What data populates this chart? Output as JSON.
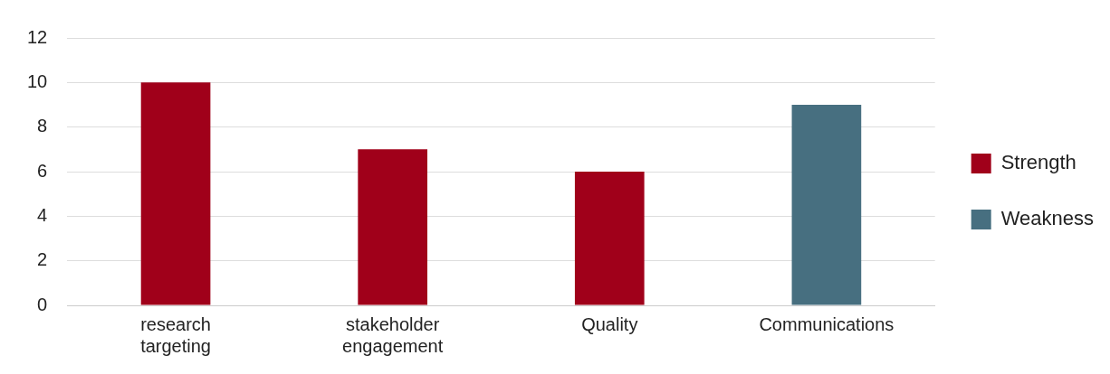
{
  "chart_data": {
    "type": "bar",
    "categories": [
      "research targeting",
      "stakeholder engagement",
      "Quality",
      "Communications"
    ],
    "series": [
      {
        "name": "Strength",
        "color": "#a0001a",
        "values": [
          10,
          7,
          6,
          null
        ]
      },
      {
        "name": "Weakness",
        "color": "#476f80",
        "values": [
          null,
          null,
          null,
          9
        ]
      }
    ],
    "ylim": [
      0,
      12
    ],
    "yticks": [
      0,
      2,
      4,
      6,
      8,
      10,
      12
    ],
    "grid": "y",
    "legend": "right"
  }
}
